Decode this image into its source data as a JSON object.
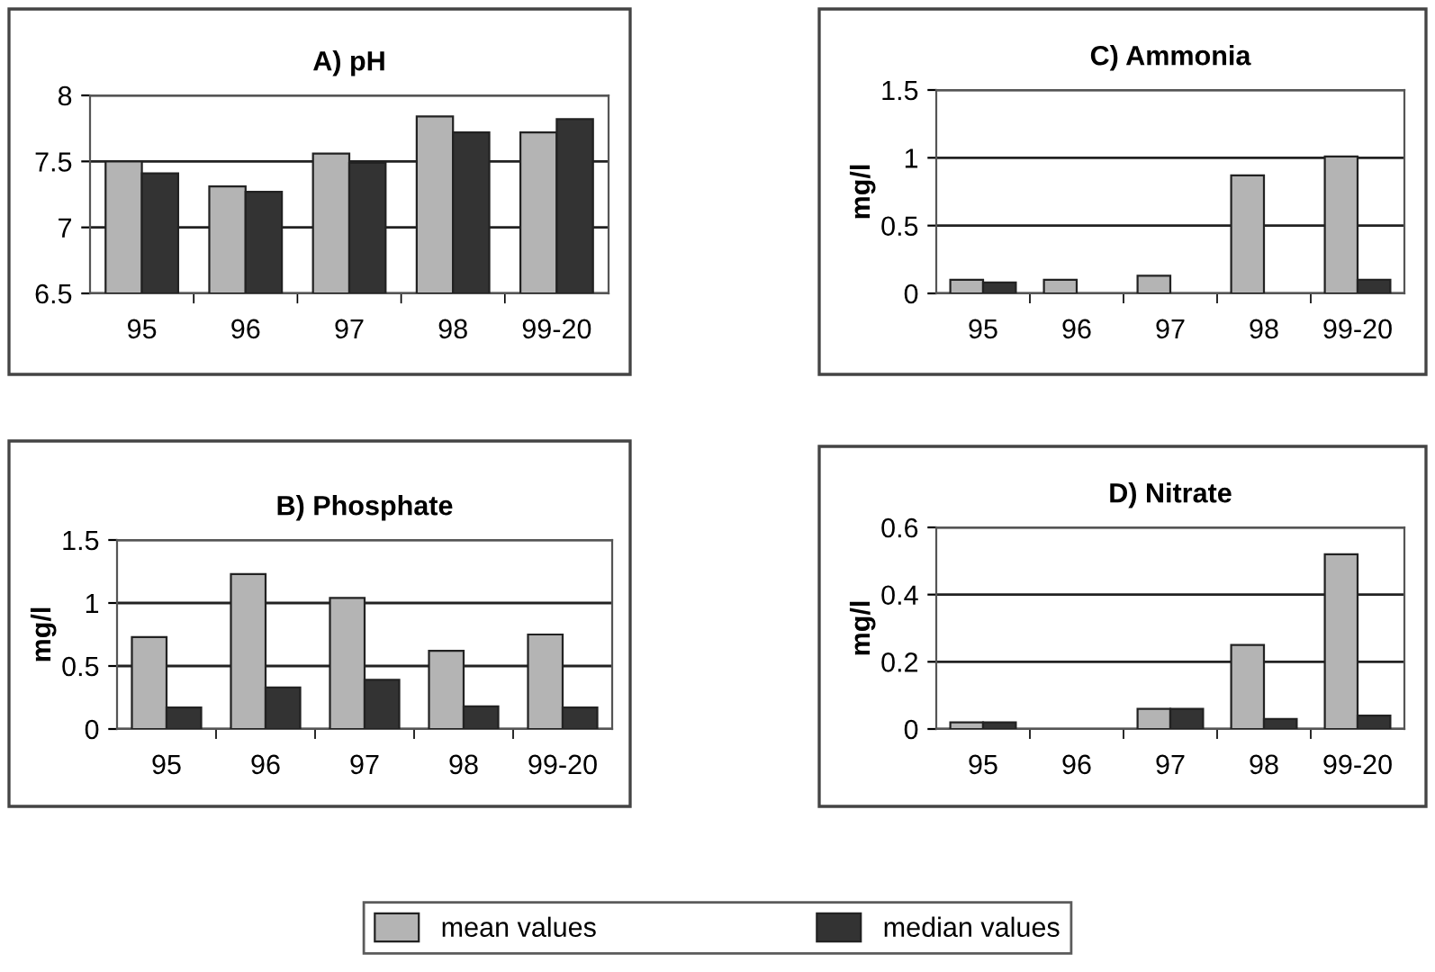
{
  "chart_data": [
    {
      "type": "bar",
      "title": "A) pH",
      "categories": [
        "95",
        "96",
        "97",
        "98",
        "99-20"
      ],
      "series": [
        {
          "name": "mean values",
          "color": "#b4b4b4",
          "values": [
            7.5,
            7.31,
            7.56,
            7.84,
            7.72
          ]
        },
        {
          "name": "median values",
          "color": "#333333",
          "values": [
            7.41,
            7.27,
            7.49,
            7.72,
            7.82
          ]
        }
      ],
      "ylim": [
        6.5,
        8
      ],
      "yticks": [
        6.5,
        7,
        7.5,
        8
      ],
      "grid": "y",
      "legend": "bottom"
    },
    {
      "type": "bar",
      "title": "C) Ammonia",
      "ylabel": "mg/l",
      "categories": [
        "95",
        "96",
        "97",
        "98",
        "99-20"
      ],
      "series": [
        {
          "color": "#b4b4b4",
          "values": [
            0.1,
            0.1,
            0.13,
            0.87,
            1.01
          ]
        },
        {
          "color": "#333333",
          "values": [
            0.08,
            null,
            null,
            null,
            0.1
          ]
        }
      ],
      "ylim": [
        0,
        1.5
      ],
      "yticks": [
        0,
        0.5,
        1,
        1.5
      ],
      "grid": "y"
    },
    {
      "type": "bar",
      "title": "B) Phosphate",
      "ylabel": "mg/l",
      "categories": [
        "95",
        "96",
        "97",
        "98",
        "99-20"
      ],
      "series": [
        {
          "color": "#b4b4b4",
          "values": [
            0.73,
            1.23,
            1.04,
            0.62,
            0.75
          ]
        },
        {
          "color": "#333333",
          "values": [
            0.17,
            0.33,
            0.39,
            0.18,
            0.17
          ]
        }
      ],
      "ylim": [
        0,
        1.5
      ],
      "yticks": [
        0,
        0.5,
        1,
        1.5
      ],
      "grid": "y"
    },
    {
      "type": "bar",
      "title": "D) Nitrate",
      "ylabel": "mg/l",
      "categories": [
        "95",
        "96",
        "97",
        "98",
        "99-20"
      ],
      "series": [
        {
          "color": "#b4b4b4",
          "values": [
            0.02,
            null,
            0.06,
            0.25,
            0.52
          ]
        },
        {
          "color": "#333333",
          "values": [
            0.02,
            null,
            0.06,
            0.03,
            0.04
          ]
        }
      ],
      "ylim": [
        0,
        0.6
      ],
      "yticks": [
        0,
        0.2,
        0.4,
        0.6
      ],
      "grid": "y"
    }
  ]
}
